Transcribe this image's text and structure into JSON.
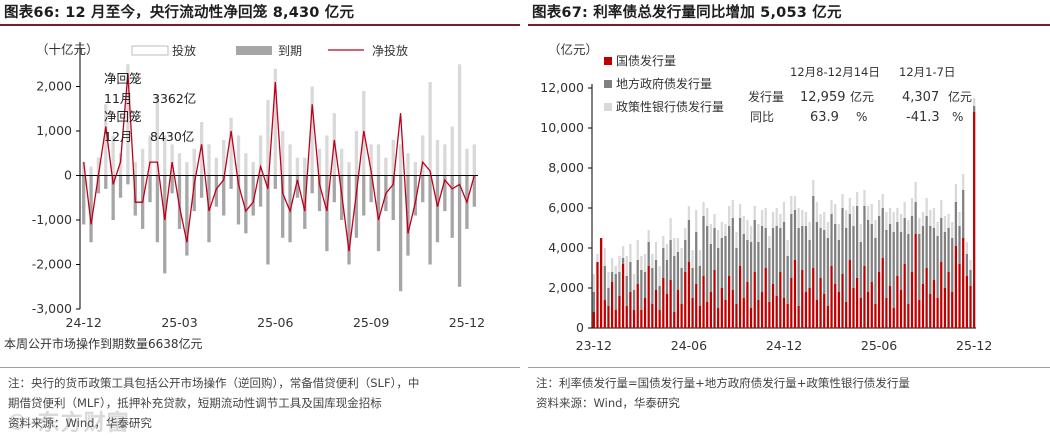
{
  "left": {
    "title": "图表66:  12 月至今，央行流动性净回笼 8,430 亿元",
    "notes": [
      "注：央行的货币政策工具包括公开市场操作（逆回购），常备借贷便利（SLF），中",
      "期借贷便利（MLF），抵押补充贷款，短期流动性调节工具及国库现金招标",
      "资料来源：Wind，华泰研究"
    ],
    "bottom_note": "本周公开市场操作到期数量6638亿元",
    "annotations": [
      {
        "text": "净回笼"
      },
      {
        "text": "11月"
      },
      {
        "text": "3362亿"
      },
      {
        "text": "净回笼"
      },
      {
        "text": "12月"
      },
      {
        "text": "8430亿"
      }
    ]
  },
  "right": {
    "title": "图表67:  利率债总发行量同比增加 5,053 亿元",
    "notes": [
      "注：利率债发行量=国债发行量+地方政府债发行量+政策性银行债发行量",
      "资料来源：Wind，华泰研究"
    ],
    "table": {
      "col1_header": "12月8-12月14日",
      "col2_header": "12月1-7日",
      "row1_label": "发行量",
      "row1_v1": "12,959",
      "row1_u1": "亿元",
      "row1_v2": "4,307",
      "row1_u2": "亿元",
      "row2_label": "同比",
      "row2_v1": "63.9",
      "row2_u1": "%",
      "row2_v2": "-41.3",
      "row2_u2": "%"
    }
  },
  "watermark": "© 东方财富",
  "colors": {
    "accent": "#7a1f2a",
    "net_line": "#c0001a",
    "maturity_bar": "#a6a6a6",
    "injection_bar": "#d9d9d9",
    "treasury": "#c00000",
    "local_gov": "#808080",
    "policy_bank": "#d9d9d9"
  },
  "chart_data": [
    {
      "type": "bar",
      "unit": "（十亿元）",
      "legend": [
        "投放",
        "到期",
        "净投放"
      ],
      "legend_placement": "top",
      "ylim": [
        -3000,
        3000
      ],
      "yticks": [
        -3000,
        -2000,
        -1000,
        0,
        1000,
        2000
      ],
      "ytick_labels": [
        "-3,000",
        "-2,000",
        "-1,000",
        "0",
        "1,000",
        "2,000"
      ],
      "xtick_labels": [
        "24-12",
        "25-03",
        "25-06",
        "25-09",
        "25-12"
      ],
      "xtick_index": [
        0,
        13,
        26,
        39,
        52
      ],
      "series": [
        {
          "name": "投放",
          "values": [
            300,
            200,
            400,
            1600,
            900,
            500,
            2500,
            300,
            600,
            900,
            1800,
            900,
            700,
            500,
            300,
            600,
            1200,
            700,
            400,
            800,
            1300,
            900,
            500,
            300,
            900,
            1700,
            2400,
            1000,
            700,
            400,
            400,
            2000,
            600,
            900,
            1400,
            600,
            300,
            1000,
            1900,
            700,
            700,
            400,
            800,
            700,
            500,
            300,
            900,
            2100,
            800,
            700,
            1100,
            2500,
            600,
            700
          ]
        },
        {
          "name": "到期",
          "values": [
            -1100,
            -1500,
            -400,
            -300,
            -1000,
            -500,
            -200,
            -900,
            -1200,
            -600,
            -1500,
            -2200,
            -400,
            -1200,
            -1800,
            -800,
            -500,
            -1500,
            -700,
            -900,
            -300,
            -1100,
            -1300,
            -900,
            -700,
            -2000,
            -300,
            -1400,
            -1500,
            -500,
            -1200,
            -400,
            -800,
            -1700,
            -600,
            -1000,
            -2000,
            -1400,
            -900,
            -600,
            -1700,
            -800,
            -1000,
            -2600,
            -1800,
            -900,
            -600,
            -2000,
            -1500,
            -800,
            -1400,
            -2500,
            -1200,
            -700
          ]
        },
        {
          "name": "净投放",
          "values": [
            300,
            -1100,
            0,
            1100,
            -200,
            300,
            2300,
            -600,
            -600,
            300,
            300,
            -1000,
            300,
            -700,
            -1500,
            -200,
            700,
            -800,
            -300,
            -100,
            1000,
            -200,
            -800,
            -600,
            200,
            -300,
            2100,
            -400,
            -800,
            -100,
            -800,
            1600,
            -200,
            -800,
            800,
            -400,
            -1700,
            -400,
            1000,
            100,
            -1000,
            -400,
            -200,
            1400,
            -1300,
            -600,
            300,
            100,
            -700,
            -100,
            -300,
            -200,
            -600,
            0
          ]
        }
      ]
    },
    {
      "type": "bar",
      "stacked": true,
      "unit": "（亿元）",
      "legend": [
        "国债发行量",
        "地方政府债发行量",
        "政策性银行债发行量"
      ],
      "legend_placement": "top-left",
      "ylim": [
        0,
        12000
      ],
      "yticks": [
        0,
        2000,
        4000,
        6000,
        8000,
        10000,
        12000
      ],
      "ytick_labels": [
        "0",
        "2,000",
        "4,000",
        "6,000",
        "8,000",
        "10,000",
        "12,000"
      ],
      "xtick_labels": [
        "23-12",
        "24-06",
        "24-12",
        "25-06",
        "25-12"
      ],
      "xtick_index": [
        0,
        26,
        52,
        78,
        104
      ],
      "series": [
        {
          "name": "国债发行量",
          "values": [
            800,
            3300,
            4500,
            1400,
            1100,
            2300,
            900,
            1600,
            3200,
            1100,
            1800,
            900,
            2200,
            900,
            1500,
            3100,
            1200,
            1900,
            900,
            2500,
            1700,
            2400,
            800,
            1900,
            1200,
            2800,
            3300,
            1500,
            2200,
            1100,
            2600,
            1300,
            1800,
            2900,
            1000,
            2000,
            1400,
            2600,
            1900,
            1200,
            3100,
            1500,
            2300,
            1000,
            2800,
            1400,
            1800,
            3000,
            1300,
            2200,
            1600,
            2800,
            1500,
            1200,
            2500,
            3400,
            1100,
            2900,
            1800,
            2000,
            3000,
            1400,
            2500,
            1700,
            1100,
            3100,
            2200,
            1800,
            2700,
            1300,
            3400,
            2000,
            2500,
            1500,
            3100,
            1800,
            2300,
            1200,
            2800,
            3500,
            1500,
            2100,
            1000,
            2600,
            1900,
            3200,
            1200,
            2800,
            4700,
            1400,
            2200,
            3000,
            1700,
            2400,
            1500,
            3300,
            2000,
            2800,
            1800,
            4100,
            3200,
            4500,
            2600,
            2100,
            10800
          ]
        },
        {
          "name": "地方政府债发行量",
          "values": [
            1000,
            0,
            0,
            1700,
            900,
            500,
            1800,
            1200,
            300,
            1500,
            1500,
            1000,
            1200,
            2000,
            1300,
            1200,
            1800,
            1500,
            1200,
            1500,
            1700,
            2000,
            2800,
            1900,
            1800,
            1600,
            2100,
            1500,
            2600,
            2000,
            3000,
            3800,
            2400,
            2100,
            3000,
            2500,
            3200,
            2500,
            3600,
            2800,
            2400,
            3200,
            2100,
            3300,
            2600,
            2900,
            3300,
            2000,
            2700,
            2800,
            3500,
            2200,
            3800,
            2400,
            3200,
            2500,
            3900,
            2200,
            3300,
            2400,
            3600,
            3900,
            2500,
            3200,
            3400,
            2600,
            3000,
            2600,
            3300,
            3700,
            2300,
            3100,
            3600,
            2800,
            3000,
            3600,
            2900,
            3300,
            2800,
            2500,
            3400,
            3100,
            3800,
            2700,
            2900,
            2300,
            3500,
            2800,
            1600,
            3300,
            2900,
            2600,
            3400,
            2600,
            3100,
            2200,
            2800,
            2200,
            2700,
            2200,
            1900,
            2400,
            1100,
            800,
            300
          ]
        },
        {
          "name": "政策性银行债发行量",
          "values": [
            900,
            400,
            0,
            900,
            800,
            700,
            400,
            800,
            600,
            1000,
            900,
            800,
            1000,
            700,
            900,
            600,
            700,
            900,
            1000,
            600,
            800,
            1100,
            900,
            700,
            1000,
            600,
            700,
            900,
            1100,
            800,
            700,
            900,
            1000,
            700,
            900,
            800,
            600,
            1000,
            900,
            800,
            700,
            900,
            1000,
            800,
            700,
            900,
            800,
            1000,
            600,
            800,
            900,
            700,
            1000,
            800,
            900,
            700,
            1000,
            800,
            700,
            900,
            800,
            1000,
            700,
            900,
            800,
            700,
            1000,
            800,
            700,
            900,
            800,
            1000,
            700,
            900,
            800,
            700,
            1000,
            900,
            800,
            700,
            900,
            800,
            1000,
            700,
            900,
            800,
            700,
            900,
            1000,
            800,
            700,
            900,
            800,
            1000,
            700,
            900,
            800,
            700,
            800,
            900,
            700,
            800,
            600,
            500,
            400
          ]
        }
      ]
    }
  ]
}
